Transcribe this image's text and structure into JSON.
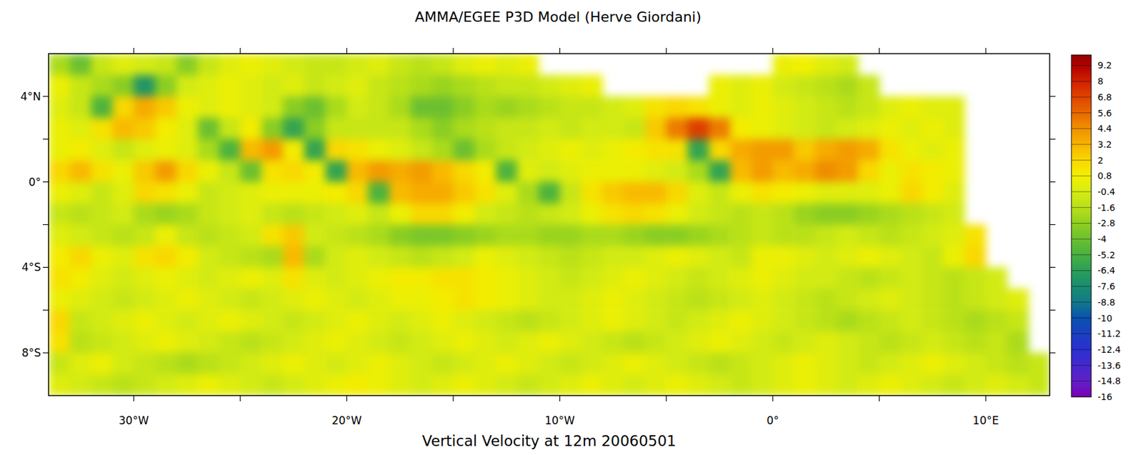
{
  "chart_data": {
    "type": "heatmap",
    "title": "AMMA/EGEE P3D Model (Herve Giordani)",
    "xlabel": "Vertical Velocity at 12m 20060501",
    "xlim": [
      -34,
      13
    ],
    "ylim": [
      -10,
      6
    ],
    "xticks": [
      {
        "value": -30,
        "label": "30°W"
      },
      {
        "value": -20,
        "label": "20°W"
      },
      {
        "value": -10,
        "label": "10°W"
      },
      {
        "value": 0,
        "label": "0°"
      },
      {
        "value": 10,
        "label": "10°E"
      }
    ],
    "yticks": [
      {
        "value": 4,
        "label": "4°N"
      },
      {
        "value": 0,
        "label": "0°"
      },
      {
        "value": -4,
        "label": "4°S"
      },
      {
        "value": -8,
        "label": "8°S"
      }
    ],
    "x": [
      -33.5,
      -32.5,
      -31.5,
      -30.5,
      -29.5,
      -28.5,
      -27.5,
      -26.5,
      -25.5,
      -24.5,
      -23.5,
      -22.5,
      -21.5,
      -20.5,
      -19.5,
      -18.5,
      -17.5,
      -16.5,
      -15.5,
      -14.5,
      -13.5,
      -12.5,
      -11.5,
      -10.5,
      -9.5,
      -8.5,
      -7.5,
      -6.5,
      -5.5,
      -4.5,
      -3.5,
      -2.5,
      -1.5,
      -0.5,
      0.5,
      1.5,
      2.5,
      3.5,
      4.5,
      5.5,
      6.5,
      7.5,
      8.5,
      9.5,
      10.5,
      11.5,
      12.5
    ],
    "y": [
      5.5,
      4.5,
      3.5,
      2.5,
      1.5,
      0.5,
      -0.5,
      -1.5,
      -2.5,
      -3.5,
      -4.5,
      -5.5,
      -6.5,
      -7.5,
      -8.5,
      -9.5
    ],
    "values": [
      [
        -2,
        -4,
        -1,
        0,
        -0.5,
        -1,
        -3,
        -1,
        0,
        0.5,
        0,
        -0.5,
        -1,
        -1,
        -0.5,
        0,
        -1,
        -1.5,
        -1,
        0,
        0.5,
        0,
        0.5,
        null,
        null,
        null,
        null,
        null,
        null,
        null,
        null,
        null,
        null,
        null,
        0.5,
        0.8,
        0,
        -0.5,
        null,
        null,
        null,
        null,
        null,
        null,
        null,
        null,
        null
      ],
      [
        0.5,
        -1,
        -2,
        -3,
        -7,
        -3,
        -0.5,
        0,
        0.5,
        0,
        -0.5,
        0,
        -1,
        -0.5,
        0,
        -1,
        -1.5,
        -2,
        -2.5,
        -2,
        -1.5,
        -1,
        -1,
        -0.5,
        0,
        0.5,
        null,
        null,
        null,
        null,
        null,
        0.5,
        0,
        0.5,
        -0.5,
        -1,
        -1.5,
        -2,
        -1,
        null,
        null,
        null,
        null,
        null,
        null,
        null,
        null
      ],
      [
        0,
        -1,
        -5,
        2,
        3.5,
        2.5,
        0.5,
        0,
        0.5,
        0,
        -0.5,
        -3,
        -4,
        -2,
        -0.5,
        -1,
        -2,
        -4,
        -4,
        -3,
        -2,
        -2.5,
        -2,
        -1.5,
        -1,
        -1,
        -0.5,
        0,
        1.5,
        2,
        1.5,
        0.5,
        0,
        0.5,
        0,
        -0.5,
        -1,
        -1.5,
        -1,
        0,
        0.5,
        0,
        0,
        null,
        null,
        null,
        null
      ],
      [
        0.5,
        0,
        1.5,
        3,
        2.5,
        1,
        0,
        -4,
        -1,
        1,
        -3,
        -6,
        -3,
        -1,
        -1,
        -1,
        -1,
        -2,
        -3,
        -2,
        -1.5,
        -1,
        -1,
        -0.5,
        -1,
        -0.5,
        -0.5,
        -1,
        2.5,
        5,
        7,
        5,
        1,
        0.5,
        0,
        -0.5,
        -1,
        -0.5,
        0,
        0.5,
        0,
        0.5,
        0,
        null,
        null,
        null,
        null
      ],
      [
        0.5,
        1,
        0,
        -1,
        0,
        0.5,
        0,
        -2,
        -5,
        3,
        4,
        1,
        -6,
        2,
        1.5,
        0.5,
        0,
        -1,
        -2,
        -4,
        -2,
        -1,
        -0.5,
        0,
        0.5,
        0,
        0.5,
        1,
        1.5,
        1.5,
        -6,
        2,
        3.5,
        4,
        4,
        2.5,
        3.5,
        4,
        3.5,
        1.5,
        0.5,
        0,
        0.5,
        null,
        null,
        null,
        null
      ],
      [
        2,
        3,
        1.5,
        0.5,
        2.5,
        4,
        2,
        0.5,
        -1,
        -4,
        1.5,
        2,
        1,
        -6,
        3,
        4,
        3.5,
        4,
        3,
        2,
        1,
        -5,
        0,
        -0.5,
        0,
        0.5,
        0.5,
        0.5,
        0,
        -0.5,
        -2,
        -6,
        3,
        4,
        3,
        3.5,
        4.5,
        4,
        2,
        0.5,
        1.5,
        1,
        0.5,
        null,
        null,
        null,
        null
      ],
      [
        0.5,
        0,
        -1,
        0,
        2,
        1.5,
        0.5,
        -1,
        -0.5,
        0,
        0.5,
        0.5,
        0.5,
        1,
        2,
        -5,
        3,
        3.5,
        3.5,
        2.5,
        1.5,
        0,
        -2,
        -5,
        -1,
        1.5,
        2.5,
        3,
        3,
        2,
        0,
        -1,
        0.5,
        1.5,
        1,
        0.5,
        0,
        0,
        0,
        0.5,
        2,
        1,
        0,
        null,
        null,
        null,
        null
      ],
      [
        -1,
        -1.5,
        -1,
        -0.5,
        -2,
        -2.5,
        -2,
        -1,
        -0.5,
        0,
        -1,
        -1.5,
        -1,
        -0.5,
        0,
        -1,
        0.5,
        2,
        2,
        1,
        -0.5,
        -1,
        -1.5,
        -1,
        -0.5,
        0.5,
        1.5,
        2,
        1.5,
        0.5,
        -0.5,
        -1,
        -1.5,
        -1,
        -1.5,
        -2.5,
        -3,
        -3,
        -2.5,
        -2,
        -1.5,
        -1,
        -0.5,
        null,
        null,
        null,
        null
      ],
      [
        0,
        -0.5,
        -1,
        -1.5,
        -1,
        0.5,
        -1,
        -1.5,
        -1,
        -0.5,
        1.5,
        2.5,
        -0.5,
        -1,
        -1.5,
        -2,
        -3,
        -3.5,
        -3.5,
        -3,
        -2.5,
        -2,
        -2,
        -2.5,
        -2.5,
        -2,
        -2,
        -2.5,
        -3,
        -3,
        -2.5,
        -2,
        -1.5,
        -1,
        -1.5,
        -1.5,
        -1,
        -0.5,
        -1,
        -1.5,
        -1,
        -0.5,
        0,
        1.5,
        null,
        null,
        null
      ],
      [
        1,
        2,
        0.5,
        0,
        1.5,
        2,
        1,
        -0.5,
        -1,
        -1.5,
        -2,
        3,
        -2,
        -0.5,
        0,
        -0.5,
        -1,
        -1.5,
        -1,
        -0.5,
        0.5,
        0,
        -0.5,
        -1,
        -1.5,
        -1,
        -0.5,
        -0.5,
        0,
        0.5,
        0,
        -0.5,
        -1,
        0.5,
        0.5,
        0,
        -0.5,
        0,
        0.5,
        0,
        -0.5,
        -1,
        0.5,
        2,
        null,
        null,
        null
      ],
      [
        1.5,
        1,
        0,
        -0.5,
        0,
        0.5,
        0,
        -0.5,
        0,
        0.5,
        0,
        1.5,
        0,
        -0.5,
        0,
        0.5,
        1,
        1,
        1.5,
        1.5,
        1,
        0.5,
        0,
        -0.5,
        -1,
        -0.5,
        0,
        0.5,
        0,
        -0.5,
        -1,
        -0.5,
        0,
        0.5,
        0,
        -0.5,
        -0.5,
        -1,
        -1.5,
        -1,
        -0.5,
        -1,
        -1.5,
        -1,
        -0.5,
        null,
        null
      ],
      [
        0.5,
        0,
        -0.5,
        -1,
        -0.5,
        0,
        0.5,
        0,
        -0.5,
        -1,
        -0.5,
        0,
        0.5,
        0,
        -0.5,
        0,
        0.5,
        0.5,
        1,
        1.5,
        1,
        0.5,
        0,
        -0.5,
        -0.5,
        0,
        0.5,
        0,
        -0.5,
        -1,
        -1.5,
        -1,
        -0.5,
        0,
        -0.5,
        -1,
        -1.5,
        -1,
        -0.5,
        0,
        -0.5,
        -1,
        -1.5,
        -1,
        -0.5,
        0,
        null
      ],
      [
        2,
        -1,
        -0.5,
        0,
        0.5,
        0,
        -0.5,
        0,
        0.5,
        0,
        -0.5,
        -1,
        -0.5,
        0,
        0.5,
        0,
        -0.5,
        0,
        0.5,
        0,
        -0.5,
        -1,
        -1.5,
        -1,
        -0.5,
        0,
        0.5,
        0,
        -0.5,
        -1,
        -0.5,
        0,
        0.5,
        0,
        -0.5,
        -1,
        -1.5,
        -2,
        -1.5,
        -1,
        -0.5,
        -1,
        -1.5,
        -2,
        -1.5,
        -1,
        null
      ],
      [
        1.5,
        -1.5,
        -1,
        -0.5,
        0,
        0.5,
        0,
        -0.5,
        -1,
        -1.5,
        -1,
        -0.5,
        0,
        0.5,
        0,
        -0.5,
        -1,
        -0.5,
        0,
        0.5,
        0,
        -0.5,
        0,
        0.5,
        0,
        -0.5,
        -1,
        -1.5,
        -1,
        -0.5,
        0,
        0.5,
        0,
        -0.5,
        -1,
        -0.5,
        0,
        -0.5,
        -1,
        -1.5,
        -1,
        -0.5,
        -1,
        -1.5,
        -1,
        -2,
        null
      ],
      [
        -1,
        0,
        0.5,
        -0.5,
        -1,
        -1.5,
        -2,
        -1.5,
        -1,
        -0.5,
        0,
        0.5,
        0,
        -0.5,
        0,
        0.5,
        0,
        -0.5,
        -1,
        -0.5,
        0,
        0.5,
        0,
        -0.5,
        -1,
        -0.5,
        0,
        0.5,
        0,
        -0.5,
        -1,
        -1.5,
        -1,
        -0.5,
        0,
        0.5,
        0,
        -0.5,
        -1,
        -0.5,
        0,
        0.5,
        0,
        -0.5,
        -1,
        -1.5,
        -1
      ],
      [
        0,
        -0.5,
        -1,
        -1.5,
        -1,
        -0.5,
        0,
        0.5,
        0,
        -0.5,
        -1,
        -0.5,
        0,
        0.5,
        1,
        0.5,
        0,
        -0.5,
        0,
        0.5,
        0,
        -0.5,
        -1,
        -0.5,
        0,
        0.5,
        0,
        -0.5,
        0,
        0.5,
        0,
        -0.5,
        -1,
        -0.5,
        0,
        0.5,
        0,
        -0.5,
        0,
        0.5,
        0,
        -0.5,
        -1,
        -0.5,
        0,
        -0.5,
        -1
      ]
    ],
    "colorbar": {
      "range": [
        -16,
        10
      ],
      "ticks": [
        9.2,
        8,
        6.8,
        5.6,
        4.4,
        3.2,
        2,
        0.8,
        -0.4,
        -1.6,
        -2.8,
        -4,
        -5.2,
        -6.4,
        -7.6,
        -8.8,
        -10,
        -11.2,
        -12.4,
        -13.6,
        -14.8,
        -16
      ]
    }
  }
}
